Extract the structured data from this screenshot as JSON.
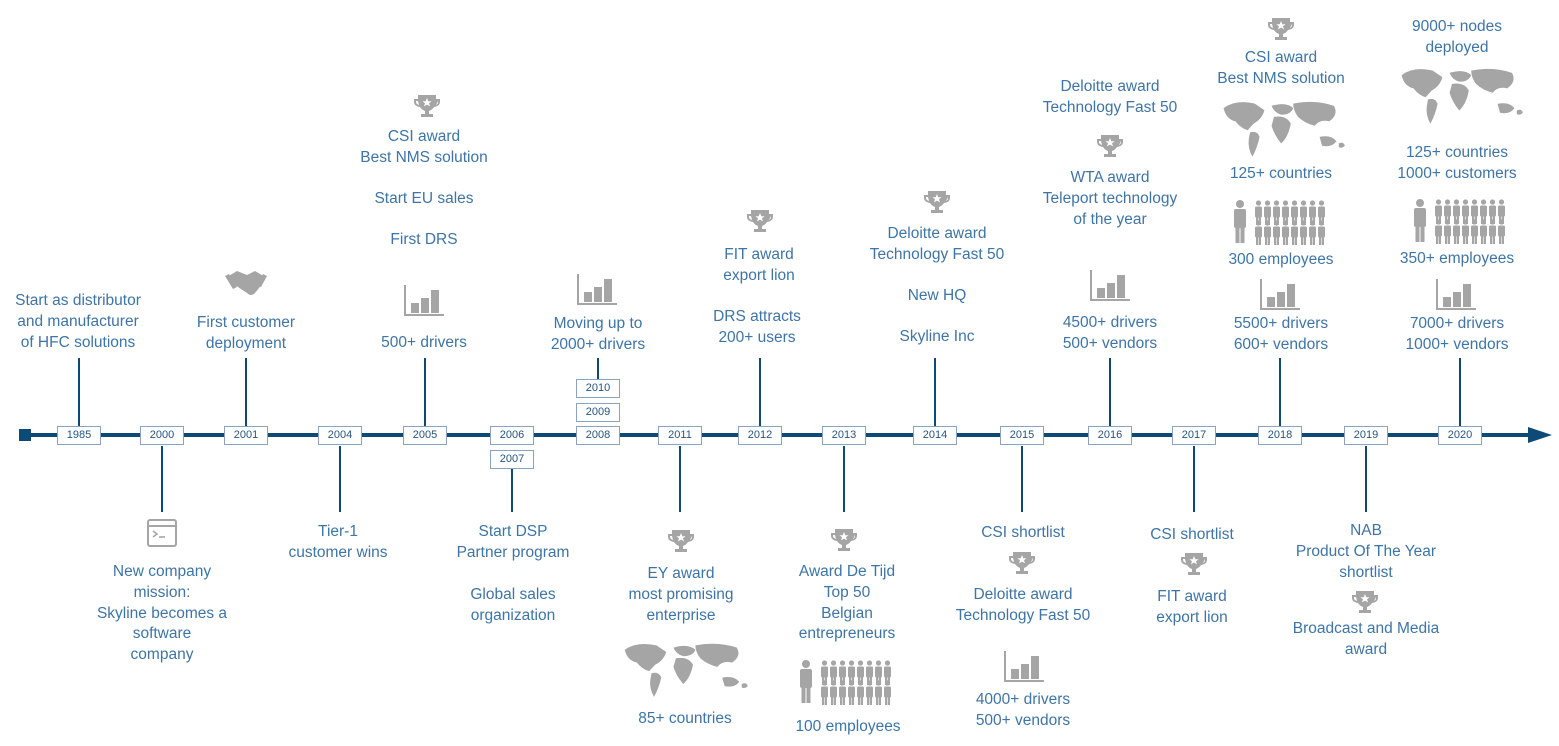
{
  "timeline": {
    "years": [
      "1985",
      "2000",
      "2001",
      "2004",
      "2005",
      "2006",
      "2007",
      "2008",
      "2009",
      "2010",
      "2011",
      "2012",
      "2013",
      "2014",
      "2015",
      "2016",
      "2017",
      "2018",
      "2019",
      "2020"
    ],
    "milestones": {
      "m1985": "Start as distributor\nand manufacturer\nof HFC solutions",
      "m2000": "New company\nmission:\nSkyline becomes a\nsoftware\ncompany",
      "m2001": "First customer\ndeployment",
      "m2004": "Tier-1\ncustomer wins",
      "m2005_award": "CSI award\nBest NMS solution",
      "m2005_sales": "Start EU sales",
      "m2005_drs": "First DRS",
      "m2005_drivers": "500+ drivers",
      "m2006_dsp": "Start DSP\nPartner program",
      "m2006_global": "Global sales\norganization",
      "m2008": "Moving up to\n2000+ drivers",
      "m2011_award": "EY award\nmost promising\nenterprise",
      "m2011_countries": "85+ countries",
      "m2012_award": "FIT award\nexport lion",
      "m2012_users": "DRS attracts\n200+ users",
      "m2013_award": "Award De Tijd\nTop 50\nBelgian\nentrepreneurs",
      "m2013_employees": "100 employees",
      "m2014_award": "Deloitte award\nTechnology Fast 50",
      "m2014_hq": "New HQ",
      "m2014_inc": "Skyline Inc",
      "m2015_shortlist": "CSI shortlist",
      "m2015_award": "Deloitte award\nTechnology Fast 50",
      "m2015_drivers": "4000+ drivers\n500+ vendors",
      "m2016_deloitte": "Deloitte award\nTechnology Fast 50",
      "m2016_wta": "WTA award\nTeleport technology\nof the year",
      "m2016_drivers": "4500+ drivers\n500+ vendors",
      "m2017_shortlist": "CSI shortlist",
      "m2017_award": "FIT award\nexport lion",
      "m2018_award": "CSI award\nBest NMS solution",
      "m2018_countries": "125+ countries",
      "m2018_employees": "300 employees",
      "m2018_drivers": "5500+ drivers\n600+ vendors",
      "m2019_nab": "NAB\nProduct Of The Year\nshortlist",
      "m2019_award": "Broadcast and Media\naward",
      "m2020_nodes": "9000+ nodes\ndeployed",
      "m2020_countries": "125+ countries\n1000+ customers",
      "m2020_employees": "350+ employees",
      "m2020_drivers": "7000+ drivers\n1000+ vendors"
    }
  },
  "colors": {
    "axis": "#0e4a78",
    "text": "#3e74a6",
    "icon": "#a5a5a5",
    "box_border": "#8aa4bf"
  }
}
